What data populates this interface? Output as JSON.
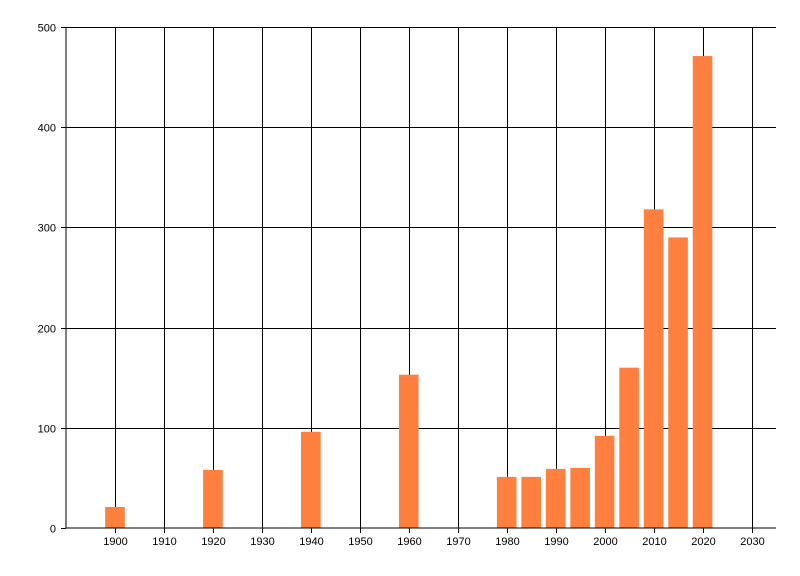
{
  "chart_data": {
    "type": "bar",
    "title": "",
    "xlabel": "",
    "ylabel": "",
    "x": [
      1900,
      1920,
      1940,
      1960,
      1980,
      1985,
      1990,
      1995,
      2000,
      2005,
      2010,
      2015,
      2020
    ],
    "values": [
      21,
      58,
      96,
      153,
      51,
      51,
      59,
      60,
      92,
      160,
      318,
      290,
      471
    ],
    "xlim": [
      1890,
      2035
    ],
    "ylim": [
      0,
      500
    ],
    "x_ticks": [
      1900,
      1910,
      1920,
      1930,
      1940,
      1950,
      1960,
      1970,
      1980,
      1990,
      2000,
      2010,
      2020,
      2030
    ],
    "y_ticks": [
      0,
      100,
      200,
      300,
      400,
      500
    ],
    "grid": true,
    "bar_color": "#ff7f3f"
  }
}
